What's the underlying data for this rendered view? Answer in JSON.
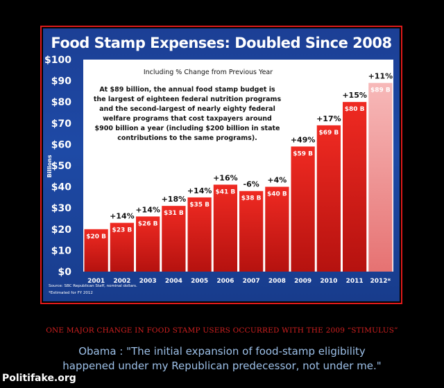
{
  "chart_data": {
    "type": "bar",
    "title": "Food Stamp Expenses: Doubled Since 2008",
    "subtitle": "Including % Change from Previous Year",
    "annotation": "At $89 billion, the annual food stamp budget is the largest of eighteen federal nutrition programs and the second-largest of nearly eighty federal welfare programs that cost taxpayers around $900 billion a year (including $200 billion in state contributions to the same programs).",
    "annotation_lines": [
      "At $89 billion, the annual food stamp budget is",
      "the largest of eighteen federal nutrition programs",
      "and the second-largest of nearly eighty federal",
      "welfare programs that cost taxpayers around",
      "$900 billion a year (including $200 billion in state",
      "contributions to the same programs)."
    ],
    "ylabel": "Billions",
    "ylim": [
      0,
      100
    ],
    "yticks": [
      "$0",
      "$10",
      "$20",
      "$30",
      "$40",
      "$50",
      "$60",
      "$70",
      "$80",
      "$90",
      "$100"
    ],
    "categories": [
      "2001",
      "2002",
      "2003",
      "2004",
      "2005",
      "2006",
      "2007",
      "2008",
      "2009",
      "2010",
      "2011",
      "2012*"
    ],
    "values": [
      20,
      23,
      26,
      31,
      35,
      41,
      38,
      40,
      59,
      69,
      80,
      89
    ],
    "bar_labels": [
      "$20 B",
      "$23 B",
      "$26 B",
      "$31 B",
      "$35 B",
      "$41 B",
      "$38 B",
      "$40 B",
      "$59 B",
      "$69 B",
      "$80 B",
      "$89 B"
    ],
    "pct_change": [
      "",
      "+14%",
      "+14%",
      "+18%",
      "+14%",
      "+16%",
      "-6%",
      "+4%",
      "+49%",
      "+17%",
      "+15%",
      "+11%"
    ],
    "estimated_index": 11,
    "source": "Source: SBC Republican Staff, nominal dollars.",
    "footnote": "*Estimated for FY 2012",
    "colors": {
      "bar": "#e3211c",
      "bar_dark": "#b01010",
      "estimated_bar": "#f29a9a",
      "background": "#1e4aa6",
      "plot_area": "#ffffff"
    }
  },
  "caption": "ONE MAJOR CHANGE IN FOOD STAMP USERS OCCURRED WITH THE 2009 “STIMULUS”",
  "quote_lines": [
    "Obama : \"The initial expansion of food-stamp eligibility",
    "happened under my Republican predecessor, not under me.\""
  ],
  "watermark": "Politifake.org"
}
